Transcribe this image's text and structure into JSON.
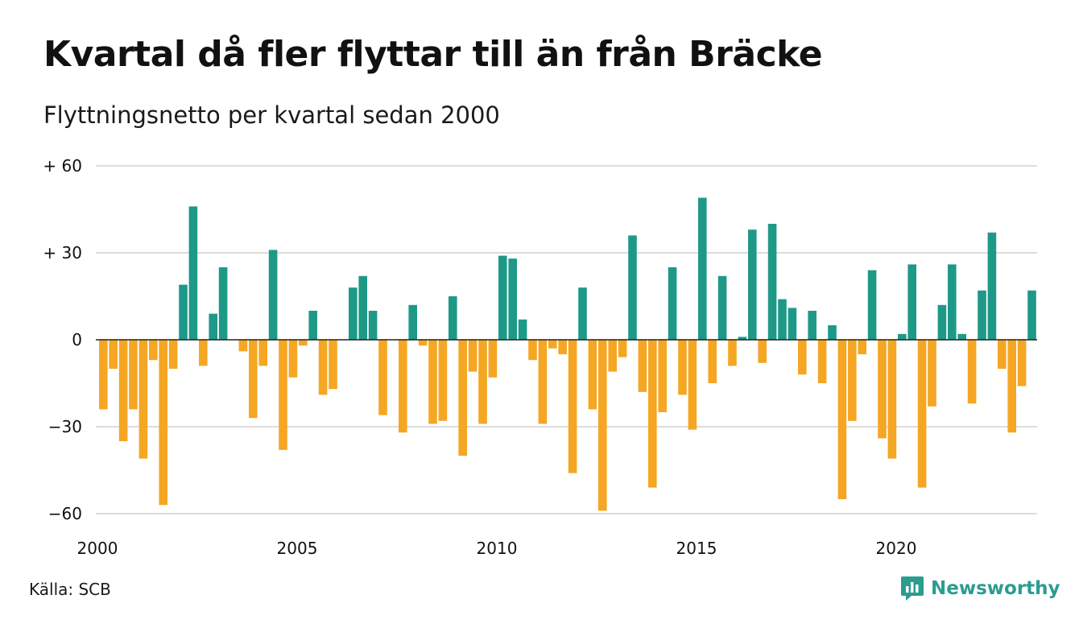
{
  "title": "Kvartal då fler flyttar till än från Bräcke",
  "subtitle": "Flyttningsnetto per kvartal sedan 2000",
  "source": "Källa: SCB",
  "brand": {
    "name": "Newsworthy",
    "icon": "newsworthy-chart-bubble-icon"
  },
  "colors": {
    "positive": "#1e9988",
    "negative": "#f5a623",
    "grid": "#dddddd",
    "zero": "#222222"
  },
  "chart_data": {
    "type": "bar",
    "title": "Kvartal då fler flyttar till än från Bräcke",
    "subtitle": "Flyttningsnetto per kvartal sedan 2000",
    "start_year": 2000,
    "quarters_per_year": 4,
    "ylim": [
      -65,
      63
    ],
    "y_ticks": [
      {
        "value": 60,
        "label": "+ 60"
      },
      {
        "value": 30,
        "label": "+ 30"
      },
      {
        "value": 0,
        "label": "0"
      },
      {
        "value": -30,
        "label": "−30"
      },
      {
        "value": -60,
        "label": "−60"
      }
    ],
    "x_ticks": [
      {
        "year": 2000,
        "label": "2000"
      },
      {
        "year": 2005,
        "label": "2005"
      },
      {
        "year": 2010,
        "label": "2010"
      },
      {
        "year": 2015,
        "label": "2015"
      },
      {
        "year": 2020,
        "label": "2020"
      }
    ],
    "values": [
      -24,
      -10,
      -35,
      -24,
      -41,
      -7,
      -57,
      -10,
      19,
      46,
      -9,
      9,
      25,
      0,
      -4,
      -27,
      -9,
      31,
      -38,
      -13,
      -2,
      10,
      -19,
      -17,
      0,
      18,
      22,
      10,
      -26,
      0,
      -32,
      12,
      -2,
      -29,
      -28,
      15,
      -40,
      -11,
      -29,
      -13,
      29,
      28,
      7,
      -7,
      -29,
      -3,
      -5,
      -46,
      18,
      -24,
      -59,
      -11,
      -6,
      36,
      -18,
      -51,
      -25,
      25,
      -19,
      -31,
      49,
      -15,
      22,
      -9,
      1,
      38,
      -8,
      40,
      14,
      11,
      -12,
      10,
      -15,
      5,
      -55,
      -28,
      -5,
      24,
      -34,
      -41,
      2,
      26,
      -51,
      -23,
      12,
      26,
      2,
      -22,
      17,
      37,
      -10,
      -32,
      -16,
      17
    ]
  }
}
